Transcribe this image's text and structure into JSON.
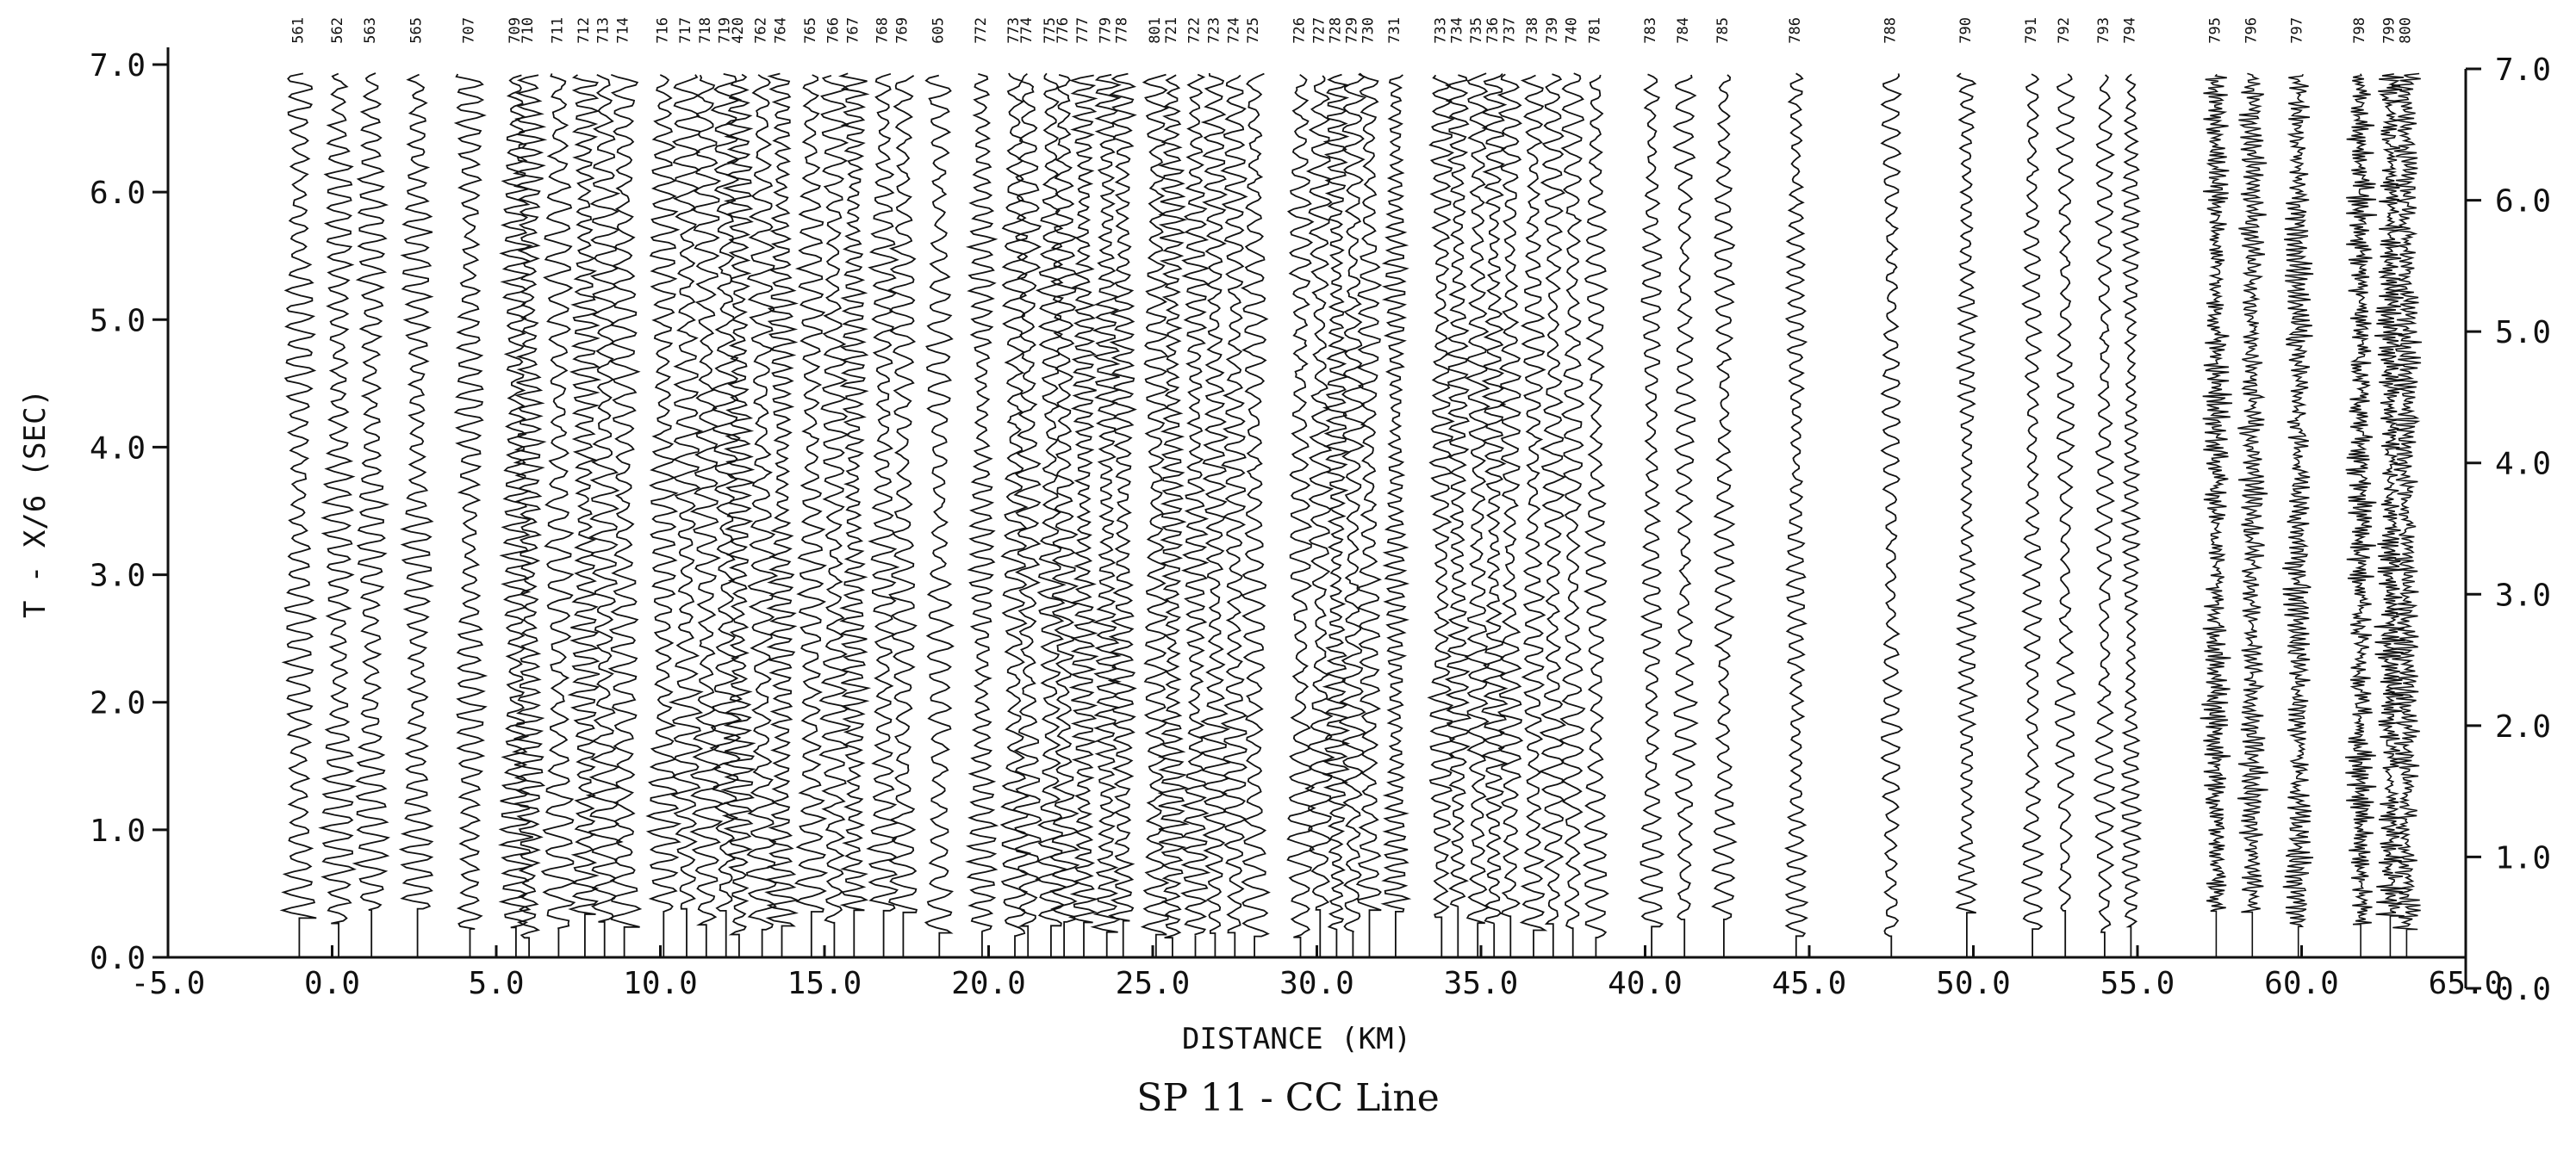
{
  "chart_data": {
    "type": "line",
    "title": "",
    "caption": "SP 11 - CC Line",
    "xlabel": "DISTANCE (KM)",
    "ylabel": "T - X/6 (SEC)",
    "xlim": [
      -5.0,
      65.0
    ],
    "ylim": [
      0.0,
      7.0
    ],
    "x_ticks": [
      "-5.0",
      "0.0",
      "5.0",
      "10.0",
      "15.0",
      "20.0",
      "25.0",
      "30.0",
      "35.0",
      "40.0",
      "45.0",
      "50.0",
      "55.0",
      "60.0",
      "65.0"
    ],
    "y_ticks": [
      "0.0",
      "1.0",
      "2.0",
      "3.0",
      "4.0",
      "5.0",
      "6.0",
      "7.0"
    ],
    "grid": false,
    "legend": "none",
    "line_color": "#111111",
    "traces": [
      {
        "id": "561",
        "x": -1.0
      },
      {
        "id": "562",
        "x": 0.2
      },
      {
        "id": "563",
        "x": 1.2
      },
      {
        "id": "565",
        "x": 2.6
      },
      {
        "id": "707",
        "x": 4.2
      },
      {
        "id": "709",
        "x": 5.6
      },
      {
        "id": "710",
        "x": 6.0
      },
      {
        "id": "711",
        "x": 6.9
      },
      {
        "id": "712",
        "x": 7.7
      },
      {
        "id": "713",
        "x": 8.3
      },
      {
        "id": "714",
        "x": 8.9
      },
      {
        "id": "716",
        "x": 10.1
      },
      {
        "id": "717",
        "x": 10.8
      },
      {
        "id": "718",
        "x": 11.4
      },
      {
        "id": "719",
        "x": 12.0
      },
      {
        "id": "420",
        "x": 12.4
      },
      {
        "id": "762",
        "x": 13.1
      },
      {
        "id": "764",
        "x": 13.7
      },
      {
        "id": "765",
        "x": 14.6
      },
      {
        "id": "766",
        "x": 15.3
      },
      {
        "id": "767",
        "x": 15.9
      },
      {
        "id": "768",
        "x": 16.8
      },
      {
        "id": "769",
        "x": 17.4
      },
      {
        "id": "605",
        "x": 18.5
      },
      {
        "id": "772",
        "x": 19.8
      },
      {
        "id": "773",
        "x": 20.8
      },
      {
        "id": "774",
        "x": 21.2
      },
      {
        "id": "775",
        "x": 21.9
      },
      {
        "id": "776",
        "x": 22.3
      },
      {
        "id": "777",
        "x": 22.9
      },
      {
        "id": "779",
        "x": 23.6
      },
      {
        "id": "778",
        "x": 24.1
      },
      {
        "id": "801",
        "x": 25.1
      },
      {
        "id": "721",
        "x": 25.6
      },
      {
        "id": "722",
        "x": 26.3
      },
      {
        "id": "723",
        "x": 26.9
      },
      {
        "id": "724",
        "x": 27.5
      },
      {
        "id": "725",
        "x": 28.1
      },
      {
        "id": "726",
        "x": 29.5
      },
      {
        "id": "727",
        "x": 30.1
      },
      {
        "id": "728",
        "x": 30.6
      },
      {
        "id": "729",
        "x": 31.1
      },
      {
        "id": "730",
        "x": 31.6
      },
      {
        "id": "731",
        "x": 32.4
      },
      {
        "id": "733",
        "x": 33.8
      },
      {
        "id": "734",
        "x": 34.3
      },
      {
        "id": "735",
        "x": 34.9
      },
      {
        "id": "736",
        "x": 35.4
      },
      {
        "id": "737",
        "x": 35.9
      },
      {
        "id": "738",
        "x": 36.6
      },
      {
        "id": "739",
        "x": 37.2
      },
      {
        "id": "740",
        "x": 37.8
      },
      {
        "id": "781",
        "x": 38.5
      },
      {
        "id": "783",
        "x": 40.2
      },
      {
        "id": "784",
        "x": 41.2
      },
      {
        "id": "785",
        "x": 42.4
      },
      {
        "id": "786",
        "x": 44.6
      },
      {
        "id": "788",
        "x": 47.5
      },
      {
        "id": "790",
        "x": 49.8
      },
      {
        "id": "791",
        "x": 51.8
      },
      {
        "id": "792",
        "x": 52.8
      },
      {
        "id": "793",
        "x": 54.0
      },
      {
        "id": "794",
        "x": 54.8
      },
      {
        "id": "795",
        "x": 57.4
      },
      {
        "id": "796",
        "x": 58.5
      },
      {
        "id": "797",
        "x": 59.9
      },
      {
        "id": "798",
        "x": 61.8
      },
      {
        "id": "799",
        "x": 62.7
      },
      {
        "id": "800",
        "x": 63.2
      }
    ]
  }
}
